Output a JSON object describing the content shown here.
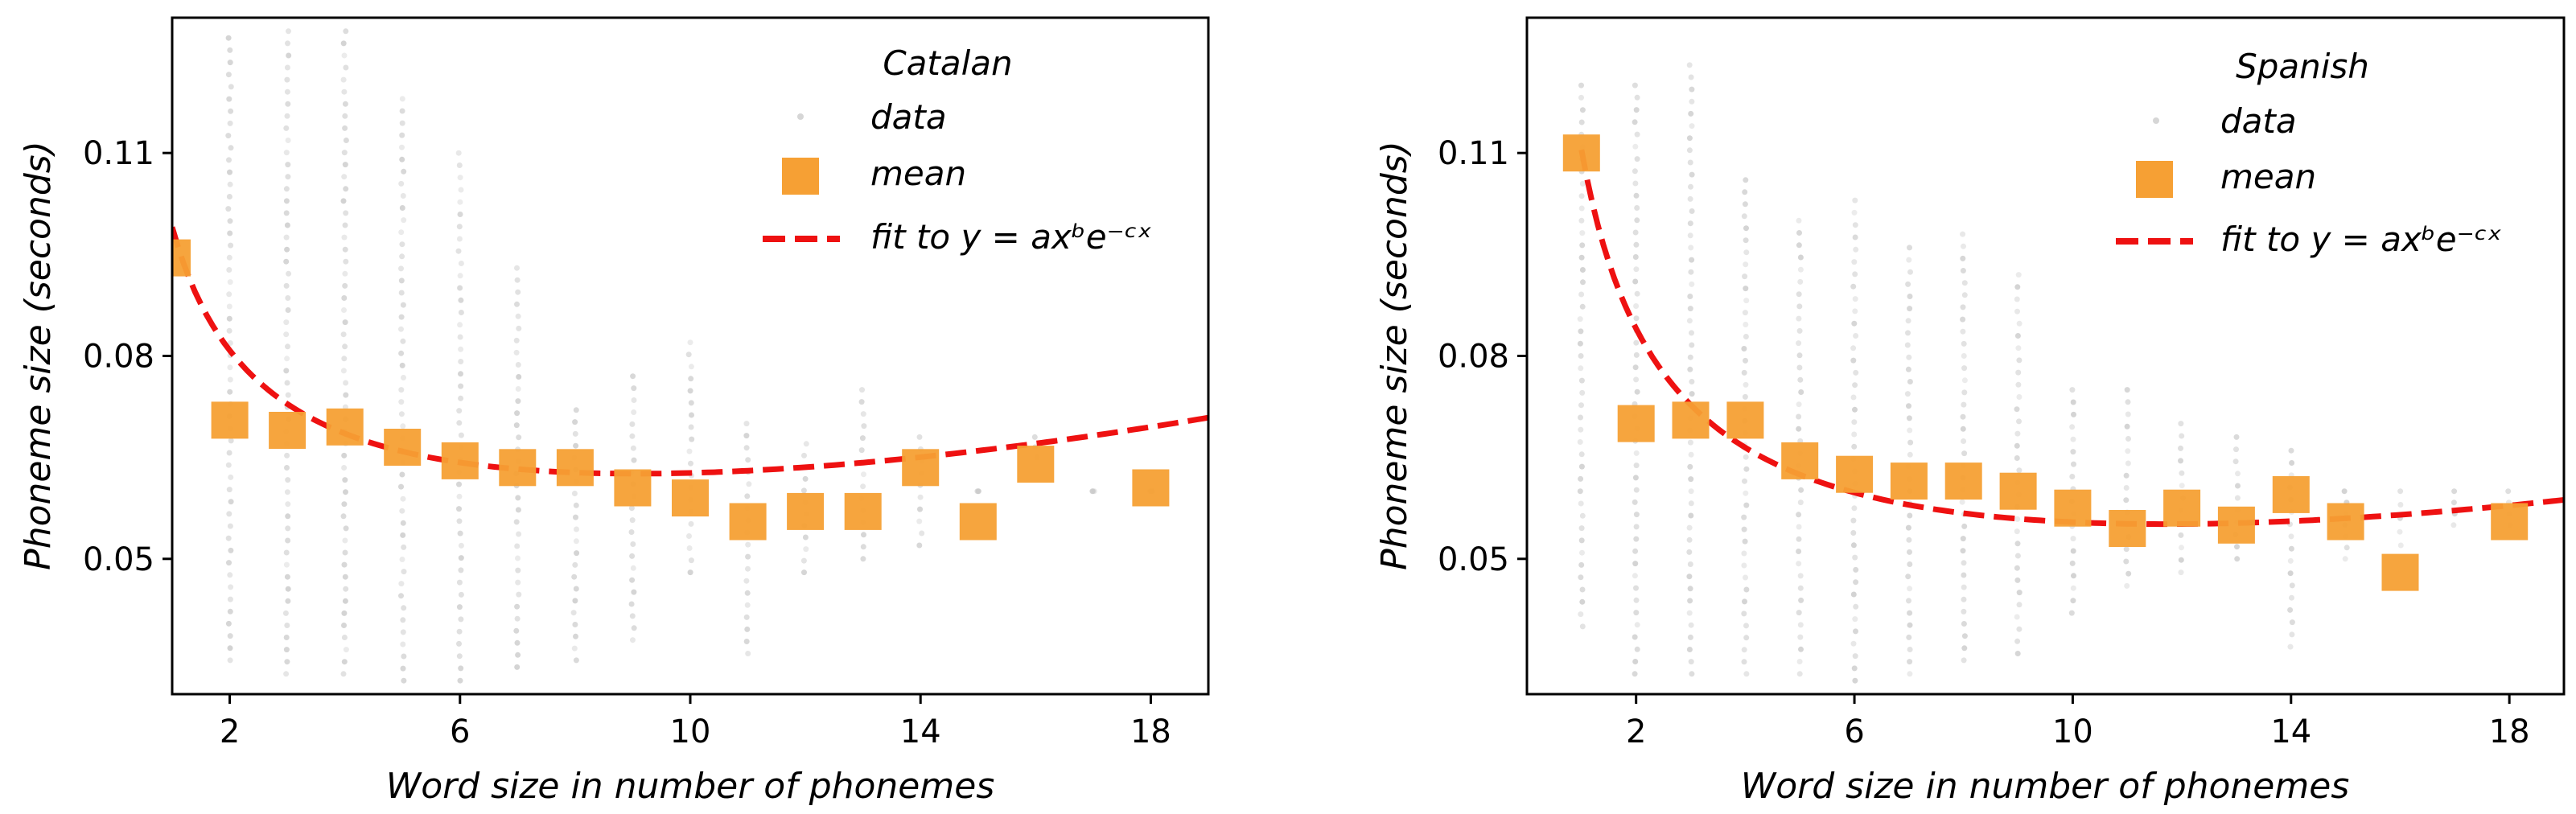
{
  "chart_data": [
    {
      "type": "scatter",
      "title": "Catalan",
      "xlabel": "Word size in number of phonemes",
      "ylabel": "Phoneme size (seconds)",
      "xlim": [
        1,
        19
      ],
      "ylim": [
        0.03,
        0.13
      ],
      "xticks": [
        2,
        6,
        10,
        14,
        18
      ],
      "yticks": [
        0.05,
        0.08,
        0.11
      ],
      "ytick_labels": [
        "0.05",
        "0.08",
        "0.11"
      ],
      "legend": {
        "position": "top-right",
        "title": "Catalan",
        "entries": [
          "data",
          "mean",
          "fit to y = axᵇe⁻ᶜˣ"
        ]
      },
      "series": [
        {
          "name": "data",
          "kind": "scatter",
          "color": "#c8c8c8",
          "x_values": [
            2,
            3,
            4,
            5,
            6,
            7,
            8,
            9,
            10,
            11,
            12,
            13,
            14,
            15,
            16,
            17,
            18
          ],
          "y_min": [
            0.035,
            0.033,
            0.033,
            0.032,
            0.032,
            0.034,
            0.035,
            0.038,
            0.048,
            0.036,
            0.048,
            0.05,
            0.052,
            0.06,
            0.065,
            0.06,
            0.06
          ],
          "y_max": [
            0.127,
            0.128,
            0.128,
            0.118,
            0.11,
            0.093,
            0.072,
            0.077,
            0.082,
            0.07,
            0.067,
            0.075,
            0.068,
            0.06,
            0.068,
            0.06,
            0.06
          ]
        },
        {
          "name": "mean",
          "kind": "marker",
          "color": "#f6a034",
          "x": [
            1,
            2,
            3,
            4,
            5,
            6,
            7,
            8,
            9,
            10,
            11,
            12,
            13,
            14,
            15,
            16,
            18
          ],
          "y": [
            0.0945,
            0.0705,
            0.069,
            0.0695,
            0.0665,
            0.0645,
            0.0635,
            0.0635,
            0.0605,
            0.059,
            0.0555,
            0.057,
            0.057,
            0.0635,
            0.0555,
            0.064,
            0.0605
          ]
        },
        {
          "name": "fit",
          "kind": "line",
          "color": "#ee1111",
          "a": 0.0953,
          "b": -0.349,
          "c": -0.0385
        }
      ]
    },
    {
      "type": "scatter",
      "title": "Spanish",
      "xlabel": "Word size in number of phonemes",
      "ylabel": "Phoneme size (seconds)",
      "xlim": [
        0,
        19
      ],
      "ylim": [
        0.03,
        0.13
      ],
      "xticks": [
        2,
        6,
        10,
        14,
        18
      ],
      "yticks": [
        0.05,
        0.08,
        0.11
      ],
      "ytick_labels": [
        "0.05",
        "0.08",
        "0.11"
      ],
      "legend": {
        "position": "top-right",
        "title": "Spanish",
        "entries": [
          "data",
          "mean",
          "fit to y = axᵇe⁻ᶜˣ"
        ]
      },
      "series": [
        {
          "name": "data",
          "kind": "scatter",
          "color": "#c8c8c8",
          "x_values": [
            1,
            2,
            3,
            4,
            5,
            6,
            7,
            8,
            9,
            10,
            11,
            12,
            13,
            14,
            15,
            16,
            17,
            18
          ],
          "y_min": [
            0.04,
            0.033,
            0.033,
            0.033,
            0.033,
            0.032,
            0.033,
            0.035,
            0.036,
            0.042,
            0.046,
            0.048,
            0.05,
            0.037,
            0.05,
            0.052,
            0.055,
            0.055
          ],
          "y_max": [
            0.12,
            0.12,
            0.123,
            0.106,
            0.1,
            0.103,
            0.096,
            0.098,
            0.092,
            0.075,
            0.075,
            0.07,
            0.068,
            0.066,
            0.06,
            0.06,
            0.06,
            0.06
          ]
        },
        {
          "name": "mean",
          "kind": "marker",
          "color": "#f6a034",
          "x": [
            1,
            2,
            3,
            4,
            5,
            6,
            7,
            8,
            9,
            10,
            11,
            12,
            13,
            14,
            15,
            16,
            18
          ],
          "y": [
            0.11,
            0.07,
            0.0705,
            0.0705,
            0.0645,
            0.0625,
            0.0615,
            0.0615,
            0.06,
            0.0575,
            0.0545,
            0.0575,
            0.055,
            0.0595,
            0.0555,
            0.048,
            0.0555
          ]
        },
        {
          "name": "fit",
          "kind": "line",
          "color": "#ee1111",
          "a": 0.1063,
          "b": -0.45,
          "c": -0.0385
        }
      ]
    }
  ]
}
